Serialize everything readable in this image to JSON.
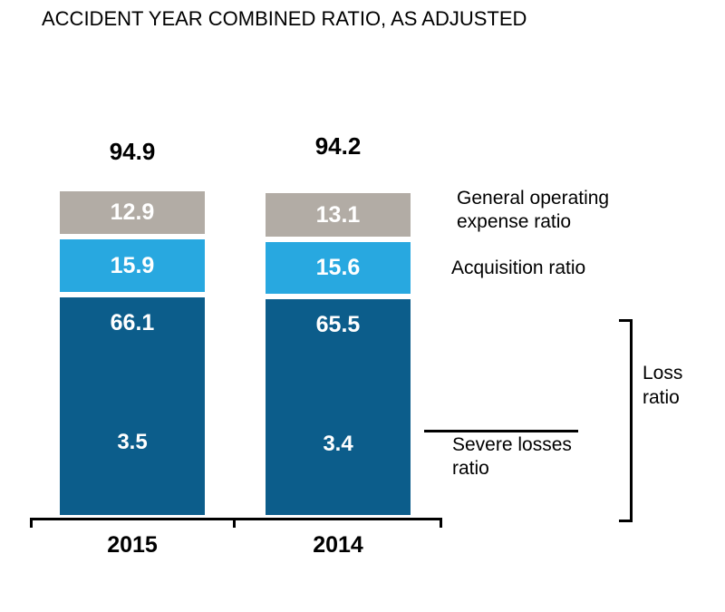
{
  "title": "ACCIDENT YEAR COMBINED RATIO, AS ADJUSTED",
  "colors": {
    "loss_ratio": "#0c5d8b",
    "acquisition_ratio": "#28a8e0",
    "general_operating_expense_ratio": "#b2aca5",
    "bar_value_text": "#ffffff",
    "text": "#000000"
  },
  "chart_data": {
    "type": "bar",
    "stacked": true,
    "title": "ACCIDENT YEAR COMBINED RATIO, AS ADJUSTED",
    "categories": [
      "2015",
      "2014"
    ],
    "totals": [
      94.9,
      94.2
    ],
    "series": [
      {
        "name": "Loss ratio",
        "color": "#0c5d8b",
        "values": [
          66.1,
          65.5
        ]
      },
      {
        "name": "Acquisition ratio",
        "color": "#28a8e0",
        "values": [
          15.9,
          15.6
        ]
      },
      {
        "name": "General operating expense ratio",
        "color": "#b2aca5",
        "values": [
          12.9,
          13.1
        ]
      }
    ],
    "severe_losses": {
      "name": "Severe losses ratio",
      "values": [
        3.5,
        3.4
      ],
      "note": "shown inside Loss ratio segment"
    },
    "grid": false,
    "legend_position": "right-annotations",
    "xlabel": "",
    "ylabel": ""
  },
  "annotations": {
    "general_operating": {
      "line1": "General operating",
      "line2": "expense ratio"
    },
    "acquisition": {
      "label": "Acquisition ratio"
    },
    "severe_losses": {
      "line1": "Severe losses",
      "line2": "ratio"
    },
    "loss": {
      "line1": "Loss",
      "line2": "ratio"
    }
  }
}
